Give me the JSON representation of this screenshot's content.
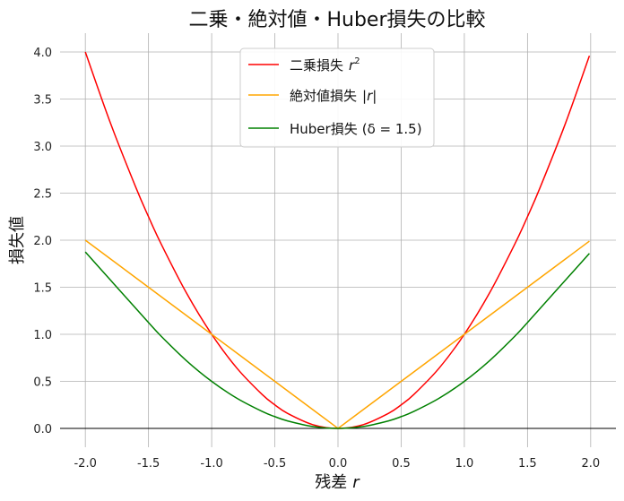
{
  "chart_data": {
    "type": "line",
    "title": "二乗・絶対値・Huber損失の比較",
    "xlabel_text": "残差",
    "xlabel_var": "r",
    "ylabel": "損失値",
    "xlim": [
      -2.2,
      2.2
    ],
    "ylim": [
      -0.2,
      4.2
    ],
    "x_ticks": [
      -2.0,
      -1.5,
      -1.0,
      -0.5,
      0.0,
      0.5,
      1.0,
      1.5,
      2.0
    ],
    "x_tick_labels": [
      "-2.0",
      "-1.5",
      "-1.0",
      "-0.5",
      "0.0",
      "0.5",
      "1.0",
      "1.5",
      "2.0"
    ],
    "y_ticks": [
      0.0,
      0.5,
      1.0,
      1.5,
      2.0,
      2.5,
      3.0,
      3.5,
      4.0
    ],
    "y_tick_labels": [
      "0.0",
      "0.5",
      "1.0",
      "1.5",
      "2.0",
      "2.5",
      "3.0",
      "3.5",
      "4.0"
    ],
    "grid": true,
    "legend_position": "top-center",
    "x": [
      -2.0,
      -1.8,
      -1.6,
      -1.5,
      -1.4,
      -1.2,
      -1.0,
      -0.8,
      -0.6,
      -0.5,
      -0.4,
      -0.2,
      0.0,
      0.2,
      0.4,
      0.5,
      0.6,
      0.8,
      1.0,
      1.2,
      1.4,
      1.5,
      1.6,
      1.8,
      1.99
    ],
    "series": [
      {
        "legend_text": "二乗損失",
        "legend_math": "r",
        "legend_sup": "2",
        "color": "#ff0000",
        "values": [
          4.0,
          3.24,
          2.56,
          2.25,
          1.96,
          1.44,
          1.0,
          0.64,
          0.36,
          0.25,
          0.16,
          0.04,
          0.0,
          0.04,
          0.16,
          0.25,
          0.36,
          0.64,
          1.0,
          1.44,
          1.96,
          2.25,
          2.56,
          3.24,
          3.96
        ]
      },
      {
        "legend_text": "絶対値損失",
        "legend_math": "|r|",
        "color": "#ffa500",
        "values": [
          2.0,
          1.8,
          1.6,
          1.5,
          1.4,
          1.2,
          1.0,
          0.8,
          0.6,
          0.5,
          0.4,
          0.2,
          0.0,
          0.2,
          0.4,
          0.5,
          0.6,
          0.8,
          1.0,
          1.2,
          1.4,
          1.5,
          1.6,
          1.8,
          1.99
        ]
      },
      {
        "legend_text": "Huber損失",
        "legend_math": "(δ = 1.5)",
        "color": "#008000",
        "values": [
          1.875,
          1.575,
          1.275,
          1.125,
          0.98,
          0.72,
          0.5,
          0.32,
          0.18,
          0.125,
          0.08,
          0.02,
          0.0,
          0.02,
          0.08,
          0.125,
          0.18,
          0.32,
          0.5,
          0.72,
          0.98,
          1.125,
          1.275,
          1.575,
          1.86
        ]
      }
    ],
    "zero_line_color": "#000000"
  }
}
